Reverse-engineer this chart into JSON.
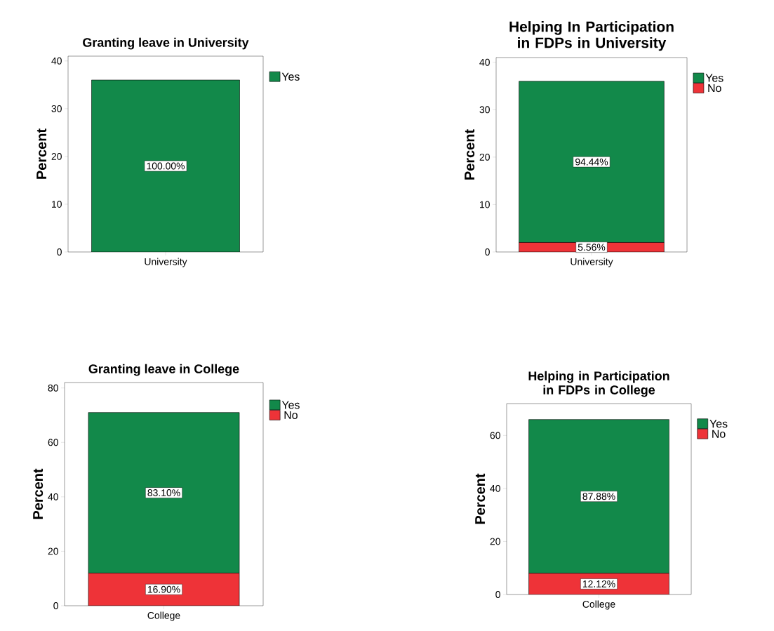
{
  "chart_data": [
    {
      "type": "bar",
      "title": "Granting leave in University",
      "ylabel": "Percent",
      "categories": [
        "University"
      ],
      "stacked": true,
      "ylim": [
        0,
        41
      ],
      "yticks": [
        0,
        10,
        20,
        30,
        40
      ],
      "legend": "right",
      "series": [
        {
          "name": "Yes",
          "color": "#12894a",
          "values": [
            36
          ]
        }
      ],
      "annotations": [
        "100.00%"
      ]
    },
    {
      "type": "bar",
      "title": "Helping In Participation in FDPs in University",
      "ylabel": "Percent",
      "categories": [
        "University"
      ],
      "stacked": true,
      "ylim": [
        0,
        41
      ],
      "yticks": [
        0,
        10,
        20,
        30,
        40
      ],
      "legend": "right",
      "series": [
        {
          "name": "No",
          "color": "#ee3338",
          "values": [
            2
          ]
        },
        {
          "name": "Yes",
          "color": "#12894a",
          "values": [
            34
          ]
        }
      ],
      "annotations": [
        "5.56%",
        "94.44%"
      ]
    },
    {
      "type": "bar",
      "title": "Granting leave in College",
      "ylabel": "Percent",
      "categories": [
        "College"
      ],
      "stacked": true,
      "ylim": [
        0,
        82
      ],
      "yticks": [
        0,
        20,
        40,
        60,
        80
      ],
      "legend": "right",
      "series": [
        {
          "name": "No",
          "color": "#ee3338",
          "values": [
            12
          ]
        },
        {
          "name": "Yes",
          "color": "#12894a",
          "values": [
            59
          ]
        }
      ],
      "annotations": [
        "16.90%",
        "83.10%"
      ]
    },
    {
      "type": "bar",
      "title": "Helping in Participation in FDPs in College",
      "ylabel": "Percent",
      "categories": [
        "College"
      ],
      "stacked": true,
      "ylim": [
        0,
        72
      ],
      "yticks": [
        0,
        20,
        40,
        60
      ],
      "legend": "right",
      "series": [
        {
          "name": "No",
          "color": "#ee3338",
          "values": [
            8
          ]
        },
        {
          "name": "Yes",
          "color": "#12894a",
          "values": [
            58
          ]
        }
      ],
      "annotations": [
        "12.12%",
        "87.88%"
      ]
    }
  ]
}
